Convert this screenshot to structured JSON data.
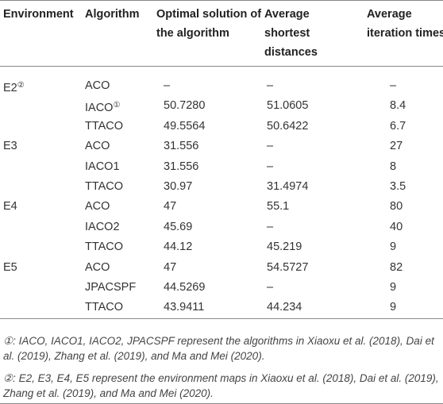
{
  "table": {
    "header": [
      [
        "Environment"
      ],
      [
        "Algorithm"
      ],
      [
        "Optimal solution of",
        "the algorithm"
      ],
      [
        "Average",
        "shortest",
        "distances"
      ],
      [
        "Average",
        "iteration times"
      ]
    ],
    "rows": [
      {
        "environment": "E2",
        "environment_note": "②",
        "algorithm": "ACO",
        "optimal": "–",
        "shortest": "–",
        "iterations": "–"
      },
      {
        "algorithm": "IACO",
        "algorithm_note": "①",
        "optimal": "50.7280",
        "shortest": "51.0605",
        "iterations": "8.4"
      },
      {
        "algorithm": "TTACO",
        "optimal": "49.5564",
        "shortest": "50.6422",
        "iterations": "6.7"
      },
      {
        "environment": "E3",
        "algorithm": "ACO",
        "optimal": "31.556",
        "shortest": "–",
        "iterations": "27"
      },
      {
        "algorithm": "IACO1",
        "optimal": "31.556",
        "shortest": "–",
        "iterations": "8"
      },
      {
        "algorithm": "TTACO",
        "optimal": "30.97",
        "shortest": "31.4974",
        "iterations": "3.5"
      },
      {
        "environment": "E4",
        "algorithm": "ACO",
        "optimal": "47",
        "shortest": "55.1",
        "iterations": "80"
      },
      {
        "algorithm": "IACO2",
        "optimal": "45.69",
        "shortest": "–",
        "iterations": "40"
      },
      {
        "algorithm": "TTACO",
        "optimal": "44.12",
        "shortest": "45.219",
        "iterations": "9"
      },
      {
        "environment": "E5",
        "algorithm": "ACO",
        "optimal": "47",
        "shortest": "54.5727",
        "iterations": "82"
      },
      {
        "algorithm": "JPACSPF",
        "optimal": "44.5269",
        "shortest": "–",
        "iterations": "9"
      },
      {
        "algorithm": "TTACO",
        "optimal": "43.9411",
        "shortest": "44.234",
        "iterations": "9"
      }
    ],
    "footnotes": [
      "①: IACO, IACO1, IACO2, JPACSPF represent the algorithms in Xiaoxu et al. (2018), Dai et al. (2019), Zhang et al. (2019), and Ma and Mei (2020).",
      "②: E2, E3, E4, E5 represent the environment maps in Xiaoxu et al. (2018), Dai et al. (2019), Zhang et al. (2019), and Ma and Mei (2020)."
    ]
  }
}
